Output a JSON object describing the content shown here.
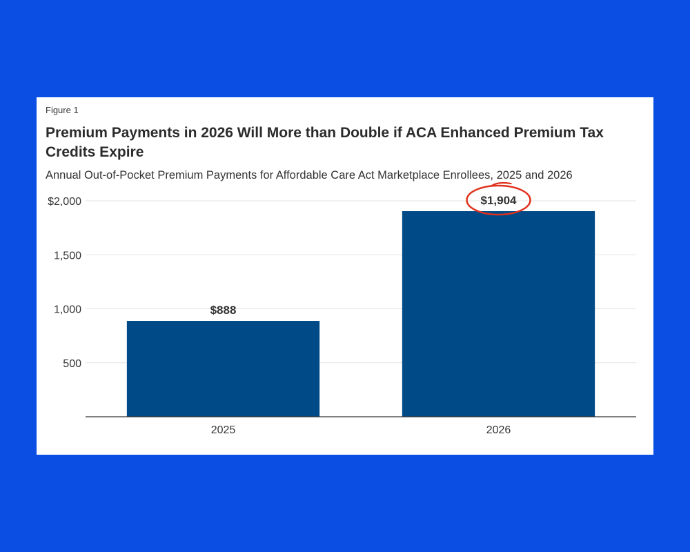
{
  "page": {
    "figure_label": "Figure 1",
    "title": "Premium Payments in 2026 Will More than Double if ACA Enhanced Premium Tax Credits Expire",
    "subtitle": "Annual Out-of-Pocket Premium Payments for Affordable Care Act Marketplace Enrollees, 2025 and 2026"
  },
  "colors": {
    "background": "#0a4ee4",
    "card": "#ffffff",
    "bar": "#004b87",
    "grid": "#e3e3e3",
    "axis": "#333333",
    "annotation": "#e0321e"
  },
  "chart_data": {
    "type": "bar",
    "categories": [
      "2025",
      "2026"
    ],
    "values": [
      888,
      1904
    ],
    "data_labels": [
      "$888",
      "$1,904"
    ],
    "title": "Premium Payments in 2026 Will More than Double if ACA Enhanced Premium Tax Credits Expire",
    "subtitle": "Annual Out-of-Pocket Premium Payments for Affordable Care Act Marketplace Enrollees, 2025 and 2026",
    "xlabel": "",
    "ylabel": "",
    "ylim": [
      0,
      2000
    ],
    "yticks": [
      500,
      1000,
      1500,
      2000
    ],
    "ytick_labels": [
      "500",
      "1,000",
      "1,500",
      "$2,000"
    ],
    "grid": true,
    "legend": "none",
    "annotation": {
      "type": "circle-highlight",
      "target": "2026"
    }
  }
}
